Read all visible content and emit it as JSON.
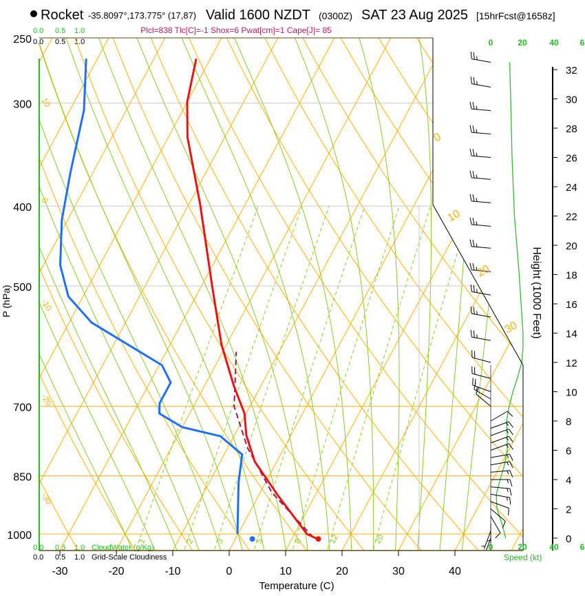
{
  "header": {
    "station": "Rocket",
    "coords": "-35.8097°,173.775° (17,87)",
    "valid": "Valid 1600 NZDT",
    "utc": "(0300Z)",
    "date": "SAT 23 Aug 2025",
    "forecast": "[15hrFcst@1658z]",
    "indices": "Plcl=838 Tlc[C]=-1 Shox=6 Pwat[cm]=1 Cape[J]= 85"
  },
  "colors": {
    "temp": "#ee1111",
    "dew": "#1e6fff",
    "parcel": "#8b1a6b",
    "isotherm": "#ffb000",
    "moist": "#88cc22",
    "mix": "#88cc22",
    "wind": "#33bb33",
    "indices": "#c0185a",
    "cloud": "#22bb22"
  },
  "cloud_scale": {
    "top_green": [
      "0.0",
      "0.5",
      "1.0"
    ],
    "top_black": [
      "0.0",
      "0.5",
      "1.0"
    ],
    "bottom_green": [
      "0.0",
      "0.5",
      "1.0"
    ],
    "bottom_black": [
      "0.0",
      "0.5",
      "1.0"
    ],
    "cloudwater_label": "CloudWater (g/Kg)",
    "cloudiness_label": "Grid-Scale Cloudiness"
  },
  "chart_data": {
    "type": "skew-t",
    "xlabel": "Temperature (C)",
    "ylabel": "P (hPa)",
    "y2label": "Height (1000 Feet)",
    "speed_label": "Speed (kt)",
    "x_ticks": [
      "-30",
      "-20",
      "-10",
      "0",
      "10",
      "20",
      "30",
      "40"
    ],
    "x_tick_values": [
      -30,
      -20,
      -10,
      0,
      10,
      20,
      30,
      40
    ],
    "p_ticks": [
      "250",
      "300",
      "400",
      "500",
      "700",
      "850",
      "1000"
    ],
    "p_tick_values": [
      250,
      300,
      400,
      500,
      700,
      850,
      1000
    ],
    "height_ticks": [
      "0",
      "2",
      "4",
      "6",
      "8",
      "10",
      "12",
      "14",
      "16",
      "18",
      "20",
      "22",
      "24",
      "26",
      "28",
      "30",
      "32"
    ],
    "speed_ticks": [
      "0",
      "20",
      "40",
      "6"
    ],
    "isotherm_labels_left": [
      "10",
      "0",
      "-10",
      "-20",
      "-30"
    ],
    "isotherm_labels_right": [
      "0",
      "10",
      "20",
      "30"
    ],
    "mixing_ratio_labels": [
      "1",
      "2",
      "3",
      "5",
      "8",
      "12",
      "20"
    ],
    "mixing_ratio_values": [
      1,
      2,
      3,
      5,
      8,
      12,
      20
    ],
    "temperature": [
      [
        1015,
        14.7
      ],
      [
        1000,
        12.2
      ],
      [
        900,
        3.6
      ],
      [
        817,
        -3.9
      ],
      [
        759,
        -7.9
      ],
      [
        714,
        -10.3
      ],
      [
        661,
        -14.8
      ],
      [
        589,
        -20.9
      ],
      [
        498,
        -28.3
      ],
      [
        398,
        -38
      ],
      [
        330,
        -46.6
      ],
      [
        299,
        -50
      ],
      [
        265,
        -52.5
      ]
    ],
    "dewpoint": [
      [
        1000,
        -0.1
      ],
      [
        866,
        -4.8
      ],
      [
        801,
        -6.8
      ],
      [
        761,
        -12.4
      ],
      [
        742,
        -20
      ],
      [
        714,
        -25.4
      ],
      [
        694,
        -26.3
      ],
      [
        655,
        -26.3
      ],
      [
        624,
        -29.5
      ],
      [
        554,
        -46
      ],
      [
        515,
        -52.6
      ],
      [
        472,
        -57
      ],
      [
        416,
        -61
      ],
      [
        364,
        -64
      ],
      [
        306,
        -67.5
      ],
      [
        265,
        -72
      ]
    ],
    "parcel": [
      [
        1010,
        13.7
      ],
      [
        891,
        2.1
      ],
      [
        786,
        -6.5
      ],
      [
        700,
        -12.8
      ],
      [
        601,
        -17.6
      ]
    ],
    "surface_temp": [
      1014,
      14.7
    ],
    "surface_dew": [
      1014,
      3.0
    ],
    "wind_speed_profile": [
      [
        0,
        9.5
      ],
      [
        1,
        7
      ],
      [
        2,
        4
      ],
      [
        3,
        3.5
      ],
      [
        4,
        6
      ],
      [
        5,
        8.7
      ],
      [
        6,
        10.4
      ],
      [
        7,
        10.4
      ],
      [
        8,
        10
      ],
      [
        9,
        11.7
      ],
      [
        10,
        14
      ],
      [
        11,
        17
      ],
      [
        12,
        19.6
      ],
      [
        13,
        20.4
      ],
      [
        14,
        20.4
      ],
      [
        18,
        18
      ],
      [
        22,
        15
      ],
      [
        26,
        13.5
      ],
      [
        30,
        12.6
      ],
      [
        32.5,
        12
      ]
    ],
    "wind_barbs": [
      [
        32.5,
        280,
        25
      ],
      [
        30.8,
        280,
        25
      ],
      [
        29.2,
        275,
        25
      ],
      [
        27.6,
        275,
        25
      ],
      [
        26,
        275,
        25
      ],
      [
        24.5,
        275,
        25
      ],
      [
        22.9,
        275,
        25
      ],
      [
        21.3,
        275,
        25
      ],
      [
        19.8,
        275,
        25
      ],
      [
        18.2,
        275,
        25
      ],
      [
        16.6,
        280,
        25
      ],
      [
        15.1,
        280,
        25
      ],
      [
        13.5,
        280,
        25
      ],
      [
        12,
        285,
        20
      ],
      [
        10.9,
        285,
        20
      ],
      [
        10,
        290,
        20
      ],
      [
        9.5,
        300,
        15
      ],
      [
        9,
        310,
        10
      ],
      [
        8,
        60,
        10
      ],
      [
        7.5,
        70,
        15
      ],
      [
        7,
        70,
        15
      ],
      [
        6.5,
        70,
        15
      ],
      [
        6,
        70,
        15
      ],
      [
        5.5,
        80,
        15
      ],
      [
        5,
        80,
        15
      ],
      [
        4.5,
        85,
        15
      ],
      [
        4,
        90,
        15
      ],
      [
        3.5,
        95,
        15
      ],
      [
        3,
        100,
        15
      ],
      [
        2.5,
        110,
        10
      ],
      [
        2,
        130,
        10
      ],
      [
        1.5,
        150,
        10
      ],
      [
        1,
        180,
        5
      ],
      [
        0.5,
        200,
        5
      ],
      [
        0,
        200,
        5
      ]
    ]
  }
}
